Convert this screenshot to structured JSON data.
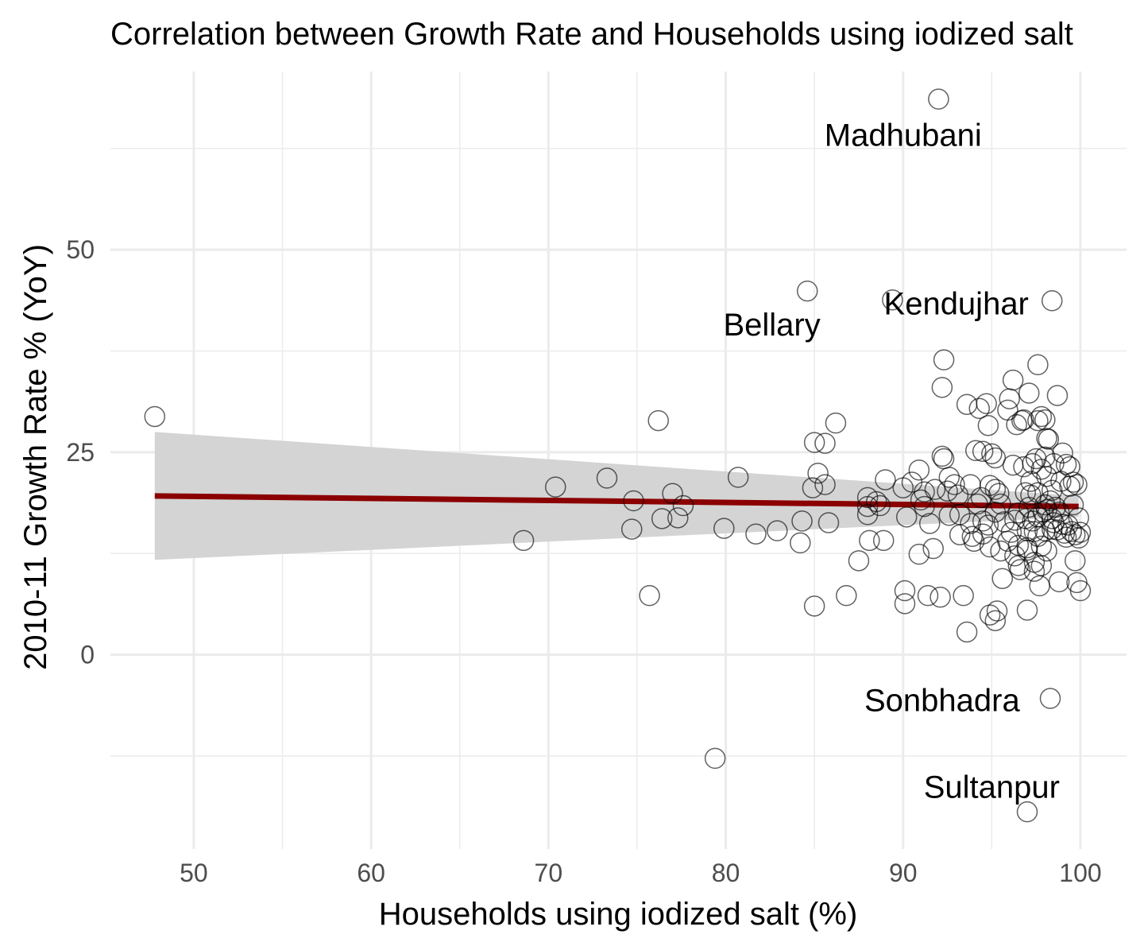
{
  "chart_data": {
    "type": "scatter",
    "title": "Correlation between Growth Rate and Households using iodized salt",
    "xlabel": "Households using iodized salt (%)",
    "ylabel": "2010-11 Growth Rate % (YoY)",
    "xlim": [
      45.3,
      102.6
    ],
    "ylim": [
      -24.0,
      72.0
    ],
    "x_ticks": [
      50,
      60,
      70,
      80,
      90,
      100
    ],
    "y_ticks": [
      0,
      25,
      50
    ],
    "grid": true,
    "regression": {
      "method": "linear",
      "color": "#8b0000",
      "x": [
        47.8,
        99.9
      ],
      "y": [
        19.6,
        18.3
      ],
      "ci_lower": [
        11.7,
        17.0
      ],
      "ci_upper": [
        27.5,
        19.6
      ]
    },
    "point_color": "#000000",
    "labels": [
      {
        "text": "Madhubani",
        "x": 90.0,
        "y": 64.2
      },
      {
        "text": "Kendujhar",
        "x": 93.0,
        "y": 43.4
      },
      {
        "text": "Bellary",
        "x": 82.6,
        "y": 40.8
      },
      {
        "text": "Sonbhadra",
        "x": 92.2,
        "y": -5.6
      },
      {
        "text": "Sultanpur",
        "x": 95.0,
        "y": -16.3
      }
    ],
    "points": [
      [
        47.8,
        29.4
      ],
      [
        68.6,
        14.1
      ],
      [
        70.4,
        20.7
      ],
      [
        73.3,
        21.8
      ],
      [
        74.8,
        19.0
      ],
      [
        74.7,
        15.5
      ],
      [
        75.7,
        7.3
      ],
      [
        76.2,
        28.9
      ],
      [
        76.4,
        16.8
      ],
      [
        77.0,
        19.9
      ],
      [
        77.3,
        16.9
      ],
      [
        77.6,
        18.4
      ],
      [
        79.4,
        -12.8
      ],
      [
        79.9,
        15.6
      ],
      [
        80.7,
        21.9
      ],
      [
        81.7,
        14.9
      ],
      [
        82.9,
        15.3
      ],
      [
        84.2,
        13.8
      ],
      [
        84.3,
        16.5
      ],
      [
        84.6,
        44.9
      ],
      [
        84.9,
        20.6
      ],
      [
        85.0,
        26.2
      ],
      [
        85.0,
        6.0
      ],
      [
        85.2,
        22.4
      ],
      [
        85.6,
        26.1
      ],
      [
        85.6,
        21.0
      ],
      [
        85.8,
        16.3
      ],
      [
        86.2,
        28.6
      ],
      [
        86.8,
        7.3
      ],
      [
        87.5,
        11.6
      ],
      [
        88.0,
        18.3
      ],
      [
        88.0,
        17.3
      ],
      [
        88.0,
        19.4
      ],
      [
        88.1,
        14.1
      ],
      [
        88.5,
        18.9
      ],
      [
        88.7,
        18.4
      ],
      [
        88.9,
        14.1
      ],
      [
        89.0,
        21.6
      ],
      [
        89.4,
        43.8
      ],
      [
        90.0,
        20.6
      ],
      [
        90.1,
        7.9
      ],
      [
        90.1,
        6.3
      ],
      [
        90.2,
        17.0
      ],
      [
        90.5,
        21.3
      ],
      [
        90.9,
        22.8
      ],
      [
        90.9,
        12.4
      ],
      [
        91.0,
        19.1
      ],
      [
        91.2,
        20.1
      ],
      [
        91.2,
        18.3
      ],
      [
        91.4,
        7.3
      ],
      [
        91.5,
        16.2
      ],
      [
        91.7,
        13.1
      ],
      [
        91.8,
        20.4
      ],
      [
        92.1,
        7.1
      ],
      [
        92.2,
        33.0
      ],
      [
        92.2,
        24.5
      ],
      [
        92.3,
        36.4
      ],
      [
        92.3,
        24.2
      ],
      [
        92.5,
        20.2
      ],
      [
        92.6,
        17.2
      ],
      [
        92.6,
        21.9
      ],
      [
        92.9,
        21.0
      ],
      [
        93.1,
        19.7
      ],
      [
        93.2,
        14.8
      ],
      [
        93.2,
        17.3
      ],
      [
        93.4,
        7.3
      ],
      [
        93.6,
        30.9
      ],
      [
        93.6,
        2.8
      ],
      [
        93.8,
        21.0
      ],
      [
        93.8,
        16.2
      ],
      [
        93.9,
        14.6
      ],
      [
        94.0,
        14.0
      ],
      [
        94.1,
        25.2
      ],
      [
        94.2,
        18.6
      ],
      [
        94.3,
        30.4
      ],
      [
        94.4,
        19.4
      ],
      [
        94.5,
        25.1
      ],
      [
        94.5,
        16.5
      ],
      [
        94.5,
        14.9
      ],
      [
        94.7,
        31.0
      ],
      [
        94.8,
        28.3
      ],
      [
        94.8,
        16.0
      ],
      [
        94.9,
        13.3
      ],
      [
        94.9,
        4.9
      ],
      [
        94.9,
        20.9
      ],
      [
        95.0,
        24.8
      ],
      [
        95.2,
        20.4
      ],
      [
        95.2,
        24.3
      ],
      [
        95.2,
        4.2
      ],
      [
        95.2,
        17.6
      ],
      [
        95.3,
        5.4
      ],
      [
        95.4,
        19.9
      ],
      [
        95.5,
        18.6
      ],
      [
        95.5,
        12.8
      ],
      [
        95.6,
        9.4
      ],
      [
        95.7,
        16.4
      ],
      [
        95.9,
        14.0
      ],
      [
        95.9,
        30.2
      ],
      [
        96.0,
        31.6
      ],
      [
        96.1,
        15.1
      ],
      [
        96.2,
        33.9
      ],
      [
        96.2,
        23.4
      ],
      [
        96.3,
        16.6
      ],
      [
        96.3,
        12.2
      ],
      [
        96.4,
        28.4
      ],
      [
        96.5,
        17.5
      ],
      [
        96.5,
        13.5
      ],
      [
        96.5,
        11.0
      ],
      [
        96.6,
        10.5
      ],
      [
        96.7,
        28.9
      ],
      [
        96.8,
        29.0
      ],
      [
        96.8,
        23.2
      ],
      [
        96.9,
        20.0
      ],
      [
        96.9,
        16.8
      ],
      [
        97.0,
        15.3
      ],
      [
        97.0,
        13.2
      ],
      [
        97.0,
        12.9
      ],
      [
        97.0,
        5.5
      ],
      [
        97.1,
        32.3
      ],
      [
        97.1,
        18.2
      ],
      [
        97.2,
        21.4
      ],
      [
        97.2,
        19.7
      ],
      [
        97.3,
        23.6
      ],
      [
        97.3,
        16.5
      ],
      [
        97.4,
        15.2
      ],
      [
        97.4,
        11.4
      ],
      [
        97.4,
        10.3
      ],
      [
        97.5,
        24.2
      ],
      [
        97.6,
        35.8
      ],
      [
        97.6,
        28.9
      ],
      [
        97.6,
        20.0
      ],
      [
        97.6,
        17.0
      ],
      [
        97.6,
        14.6
      ],
      [
        97.7,
        8.5
      ],
      [
        97.8,
        29.4
      ],
      [
        97.8,
        22.9
      ],
      [
        97.8,
        13.4
      ],
      [
        97.8,
        11.0
      ],
      [
        97.9,
        17.6
      ],
      [
        98.0,
        24.4
      ],
      [
        98.0,
        29.0
      ],
      [
        98.0,
        18.5
      ],
      [
        98.0,
        15.3
      ],
      [
        98.1,
        26.7
      ],
      [
        98.1,
        17.9
      ],
      [
        98.1,
        22.0
      ],
      [
        98.1,
        12.8
      ],
      [
        98.2,
        26.6
      ],
      [
        98.3,
        19.0
      ],
      [
        98.3,
        -5.4
      ],
      [
        98.4,
        43.7
      ],
      [
        98.4,
        20.3
      ],
      [
        98.4,
        16.8
      ],
      [
        98.4,
        15.5
      ],
      [
        98.5,
        23.6
      ],
      [
        98.5,
        16.3
      ],
      [
        98.6,
        18.2
      ],
      [
        98.7,
        15.4
      ],
      [
        98.7,
        32.0
      ],
      [
        98.8,
        17.6
      ],
      [
        98.8,
        9.0
      ],
      [
        98.9,
        21.4
      ],
      [
        99.0,
        24.9
      ],
      [
        99.0,
        16.1
      ],
      [
        99.1,
        15.0
      ],
      [
        99.2,
        23.5
      ],
      [
        99.2,
        14.5
      ],
      [
        99.3,
        16.0
      ],
      [
        99.4,
        20.8
      ],
      [
        99.4,
        23.2
      ],
      [
        99.5,
        15.2
      ],
      [
        99.6,
        21.3
      ],
      [
        99.6,
        18.5
      ],
      [
        99.7,
        14.8
      ],
      [
        99.7,
        11.6
      ],
      [
        99.8,
        8.9
      ],
      [
        99.8,
        21.0
      ],
      [
        99.9,
        16.9
      ],
      [
        99.9,
        14.4
      ],
      [
        100.0,
        7.9
      ],
      [
        100.0,
        15.1
      ],
      [
        92.0,
        68.6
      ],
      [
        97.0,
        -19.4
      ]
    ]
  }
}
